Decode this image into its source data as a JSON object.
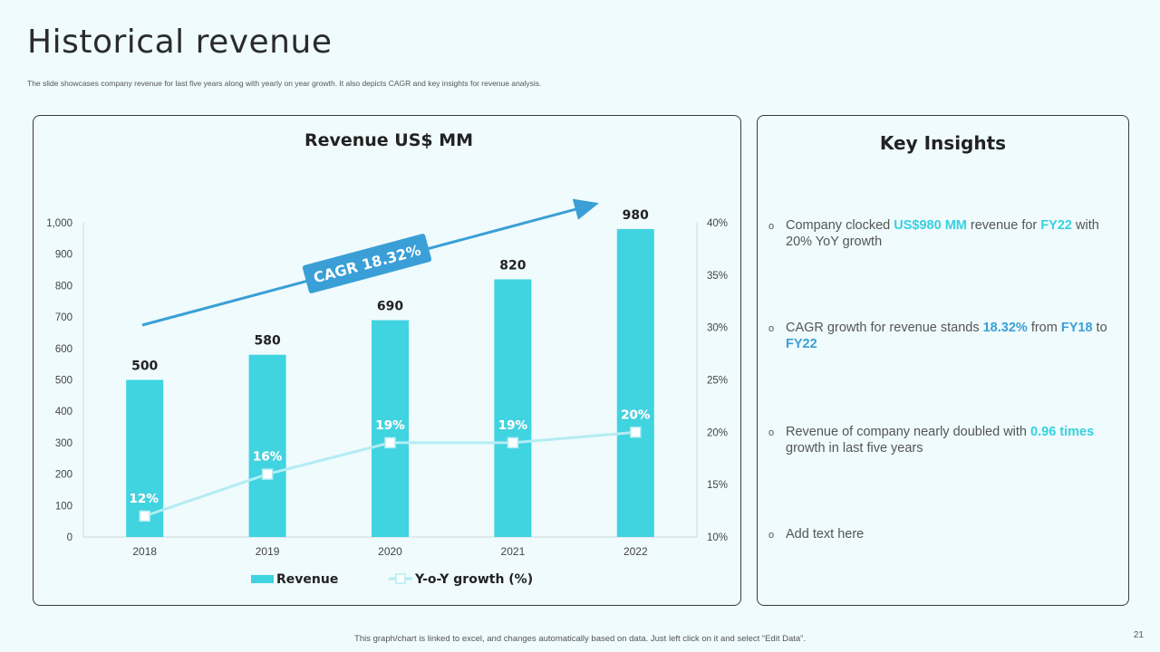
{
  "slide": {
    "title": "Historical revenue",
    "subtitle": "The slide showcases company revenue for last five years along with yearly on year growth. It also depicts CAGR and key insights for revenue analysis.",
    "footer": "This graph/chart is linked to excel, and changes automatically based on data. Just left click on it and select “Edit Data”.",
    "page_number": "21"
  },
  "colors": {
    "bar": "#40d3e0",
    "line": "#b4ecf3",
    "arrow": "#3a9fd6",
    "cagr_badge": "#3a9fd6",
    "highlight_cyan": "#36d1df",
    "highlight_blue": "#3a9fd6"
  },
  "chart_data": {
    "type": "bar",
    "title": "Revenue US$ MM",
    "categories": [
      "2018",
      "2019",
      "2020",
      "2021",
      "2022"
    ],
    "series": [
      {
        "name": "Revenue",
        "type": "bar",
        "axis": "left",
        "values": [
          500,
          580,
          690,
          820,
          980
        ],
        "labels": [
          "500",
          "580",
          "690",
          "820",
          "980"
        ]
      },
      {
        "name": "Y-o-Y growth (%)",
        "type": "line",
        "axis": "right",
        "values": [
          12,
          16,
          19,
          19,
          20
        ],
        "labels": [
          "12%",
          "16%",
          "19%",
          "19%",
          "20%"
        ]
      }
    ],
    "ylim": [
      0,
      1000
    ],
    "yticks": [
      "0",
      "100",
      "200",
      "300",
      "400",
      "500",
      "600",
      "700",
      "800",
      "900",
      "1,000"
    ],
    "y2lim": [
      10,
      40
    ],
    "y2ticks": [
      "10%",
      "15%",
      "20%",
      "25%",
      "30%",
      "35%",
      "40%"
    ],
    "annotation": "CAGR 18.32%",
    "legend": [
      "Revenue",
      "Y-o-Y growth (%)"
    ],
    "legend_position": "bottom"
  },
  "insights": {
    "title": "Key Insights",
    "items": [
      {
        "parts": [
          {
            "text": "Company clocked ",
            "style": "plain"
          },
          {
            "text": "US$980 MM",
            "style": "cyan"
          },
          {
            "text": " revenue for ",
            "style": "plain"
          },
          {
            "text": "FY22",
            "style": "cyan"
          },
          {
            "text": " with 20% YoY growth",
            "style": "plain"
          }
        ]
      },
      {
        "parts": [
          {
            "text": "CAGR growth for revenue stands ",
            "style": "plain"
          },
          {
            "text": "18.32%",
            "style": "blue"
          },
          {
            "text": " from ",
            "style": "plain"
          },
          {
            "text": "FY18",
            "style": "blue"
          },
          {
            "text": " to ",
            "style": "plain"
          },
          {
            "text": "FY22",
            "style": "blue"
          }
        ]
      },
      {
        "parts": [
          {
            "text": "Revenue of company nearly doubled with ",
            "style": "plain"
          },
          {
            "text": "0.96 times",
            "style": "cyan"
          },
          {
            "text": " growth in last five years",
            "style": "plain"
          }
        ]
      },
      {
        "parts": [
          {
            "text": "Add text here",
            "style": "plain"
          }
        ]
      }
    ]
  }
}
